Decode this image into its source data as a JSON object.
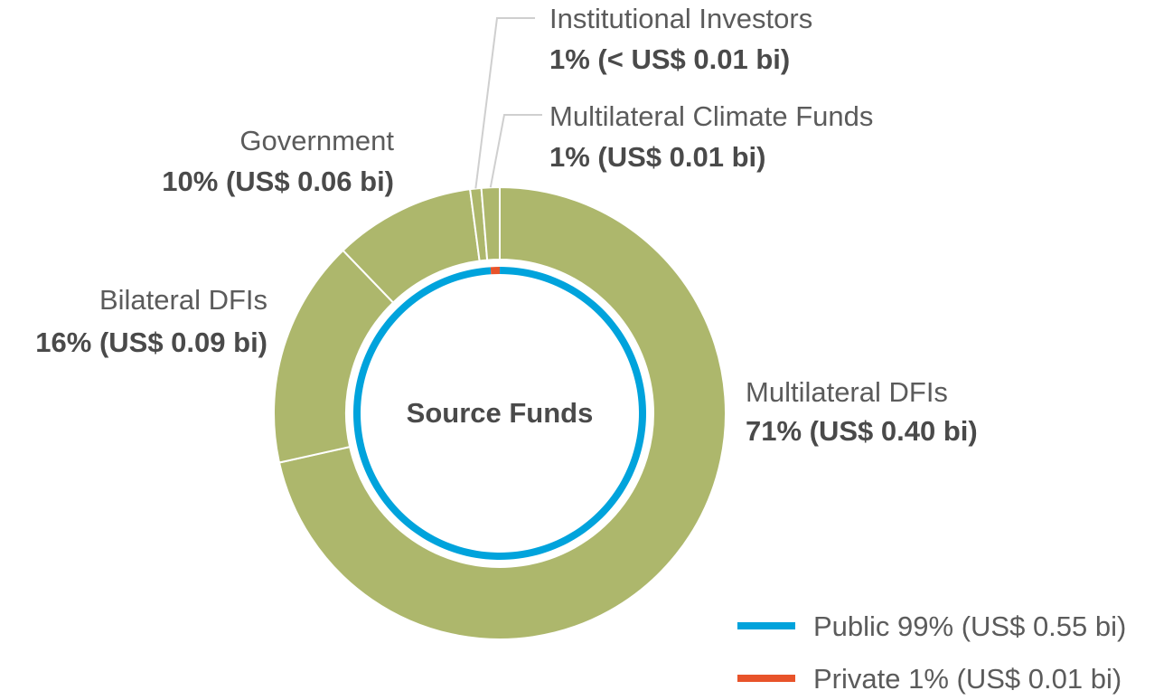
{
  "chart_data": {
    "type": "pie",
    "title": "",
    "center_label": "Source Funds",
    "outer_ring": {
      "slices": [
        {
          "name": "Multilateral DFIs",
          "label": "71% (US$ 0.40 bi)",
          "value": 71.5,
          "color": "#adb76c"
        },
        {
          "name": "Bilateral DFIs",
          "label": "16% (US$ 0.09 bi)",
          "value": 16.3,
          "color": "#adb76c"
        },
        {
          "name": "Government",
          "label": "10% (US$ 0.06 bi)",
          "value": 10.1,
          "color": "#adb76c"
        },
        {
          "name": "Institutional Investors",
          "label": "1% (< US$ 0.01 bi)",
          "value": 0.8,
          "color": "#adb76c"
        },
        {
          "name": "Multilateral Climate Funds",
          "label": "1% (US$ 0.01 bi)",
          "value": 1.3,
          "color": "#adb76c"
        }
      ]
    },
    "inner_ring": {
      "slices": [
        {
          "name": "Public",
          "label": "Public 99% (US$ 0.55 bi)",
          "value": 99,
          "color": "#00a3dc"
        },
        {
          "name": "Private",
          "label": "Private 1% (US$ 0.01 bi)",
          "value": 1,
          "color": "#e8532a"
        }
      ]
    },
    "legend_placement": "bottom-right"
  }
}
